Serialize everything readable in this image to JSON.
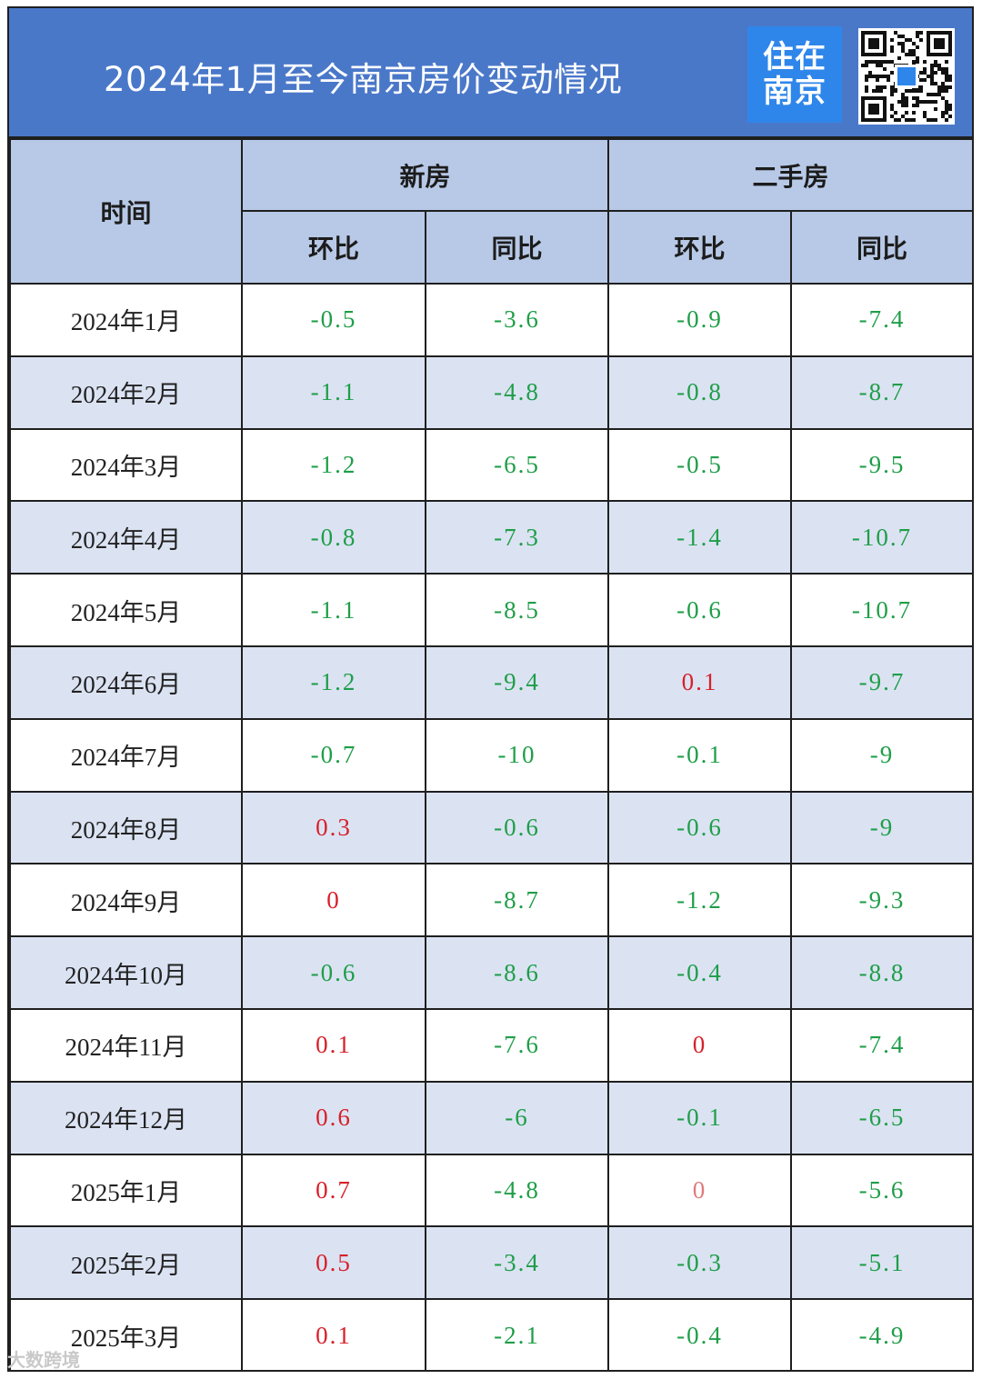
{
  "title": "2024年1月至今南京房价变动情况",
  "logo": {
    "line1": "住在",
    "line2": "南京"
  },
  "qr_icon": "qr-code-icon",
  "colors": {
    "header_bg": "#4a78c9",
    "table_header_bg": "#b7c9e6",
    "stripe": "#dbe3f3",
    "negative": "#1f9e48",
    "positive": "#d8202a"
  },
  "headers": {
    "time": "时间",
    "new_house": "新房",
    "second_hand": "二手房",
    "mom": "环比",
    "yoy": "同比"
  },
  "rows": [
    {
      "time": "2024年1月",
      "new_mom": "-0.5",
      "new_yoy": "-3.6",
      "sec_mom": "-0.9",
      "sec_yoy": "-7.4"
    },
    {
      "time": "2024年2月",
      "new_mom": "-1.1",
      "new_yoy": "-4.8",
      "sec_mom": "-0.8",
      "sec_yoy": "-8.7"
    },
    {
      "time": "2024年3月",
      "new_mom": "-1.2",
      "new_yoy": "-6.5",
      "sec_mom": "-0.5",
      "sec_yoy": "-9.5"
    },
    {
      "time": "2024年4月",
      "new_mom": "-0.8",
      "new_yoy": "-7.3",
      "sec_mom": "-1.4",
      "sec_yoy": "-10.7"
    },
    {
      "time": "2024年5月",
      "new_mom": "-1.1",
      "new_yoy": "-8.5",
      "sec_mom": "-0.6",
      "sec_yoy": "-10.7"
    },
    {
      "time": "2024年6月",
      "new_mom": "-1.2",
      "new_yoy": "-9.4",
      "sec_mom": "0.1",
      "sec_yoy": "-9.7"
    },
    {
      "time": "2024年7月",
      "new_mom": "-0.7",
      "new_yoy": "-10",
      "sec_mom": "-0.1",
      "sec_yoy": "-9"
    },
    {
      "time": "2024年8月",
      "new_mom": "0.3",
      "new_yoy": "-0.6",
      "sec_mom": "-0.6",
      "sec_yoy": "-9"
    },
    {
      "time": "2024年9月",
      "new_mom": "0",
      "new_yoy": "-8.7",
      "sec_mom": "-1.2",
      "sec_yoy": "-9.3"
    },
    {
      "time": "2024年10月",
      "new_mom": "-0.6",
      "new_yoy": "-8.6",
      "sec_mom": "-0.4",
      "sec_yoy": "-8.8"
    },
    {
      "time": "2024年11月",
      "new_mom": "0.1",
      "new_yoy": "-7.6",
      "sec_mom": "0",
      "sec_yoy": "-7.4"
    },
    {
      "time": "2024年12月",
      "new_mom": "0.6",
      "new_yoy": "-6",
      "sec_mom": "-0.1",
      "sec_yoy": "-6.5"
    },
    {
      "time": "2025年1月",
      "new_mom": "0.7",
      "new_yoy": "-4.8",
      "sec_mom": "0",
      "sec_yoy": "-5.6"
    },
    {
      "time": "2025年2月",
      "new_mom": "0.5",
      "new_yoy": "-3.4",
      "sec_mom": "-0.3",
      "sec_yoy": "-5.1"
    },
    {
      "time": "2025年3月",
      "new_mom": "0.1",
      "new_yoy": "-2.1",
      "sec_mom": "-0.4",
      "sec_yoy": "-4.9"
    }
  ],
  "watermark": "大数跨境"
}
